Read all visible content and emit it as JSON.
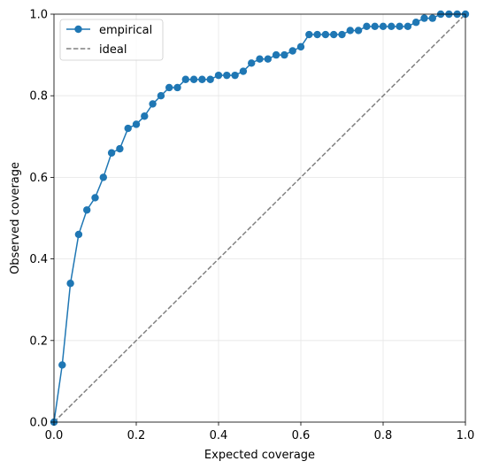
{
  "chart_data": {
    "type": "line",
    "xlabel": "Expected coverage",
    "ylabel": "Observed coverage",
    "xlim": [
      0,
      1
    ],
    "ylim": [
      0,
      1
    ],
    "xticks": [
      "0.0",
      "0.2",
      "0.4",
      "0.6",
      "0.8",
      "1.0"
    ],
    "yticks": [
      "0.0",
      "0.2",
      "0.4",
      "0.6",
      "0.8",
      "1.0"
    ],
    "grid": true,
    "legend_position": "top-left",
    "series": [
      {
        "name": "empirical",
        "color": "#1f77b4",
        "style": "solid-with-markers",
        "x": [
          0.0,
          0.02,
          0.04,
          0.06,
          0.08,
          0.1,
          0.12,
          0.14,
          0.16,
          0.18,
          0.2,
          0.22,
          0.24,
          0.26,
          0.28,
          0.3,
          0.32,
          0.34,
          0.36,
          0.38,
          0.4,
          0.42,
          0.44,
          0.46,
          0.48,
          0.5,
          0.52,
          0.54,
          0.56,
          0.58,
          0.6,
          0.62,
          0.64,
          0.66,
          0.68,
          0.7,
          0.72,
          0.74,
          0.76,
          0.78,
          0.8,
          0.82,
          0.84,
          0.86,
          0.88,
          0.9,
          0.92,
          0.94,
          0.96,
          0.98,
          1.0
        ],
        "y": [
          0.0,
          0.14,
          0.34,
          0.46,
          0.52,
          0.55,
          0.6,
          0.66,
          0.67,
          0.72,
          0.73,
          0.75,
          0.78,
          0.8,
          0.82,
          0.82,
          0.84,
          0.84,
          0.84,
          0.84,
          0.85,
          0.85,
          0.85,
          0.86,
          0.88,
          0.89,
          0.89,
          0.9,
          0.9,
          0.91,
          0.92,
          0.95,
          0.95,
          0.95,
          0.95,
          0.95,
          0.96,
          0.96,
          0.97,
          0.97,
          0.97,
          0.97,
          0.97,
          0.97,
          0.98,
          0.99,
          0.99,
          1.0,
          1.0,
          1.0,
          1.0
        ]
      },
      {
        "name": "ideal",
        "color": "#808080",
        "style": "dashed",
        "x": [
          0,
          1
        ],
        "y": [
          0,
          1
        ]
      }
    ]
  }
}
